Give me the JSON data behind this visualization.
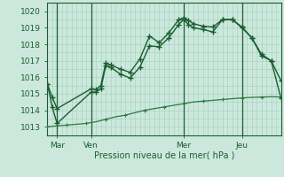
{
  "xlabel": "Pression niveau de la mer( hPa )",
  "ylim": [
    1012.5,
    1020.5
  ],
  "xlim": [
    0,
    48
  ],
  "yticks": [
    1013,
    1014,
    1015,
    1016,
    1017,
    1018,
    1019,
    1020
  ],
  "xtick_positions": [
    2,
    9,
    28,
    40
  ],
  "xtick_labels": [
    "Mar",
    "Ven",
    "Mer",
    "Jeu"
  ],
  "vline_positions": [
    2,
    9,
    28,
    40
  ],
  "bg_color": "#cce8dc",
  "grid_color": "#a8d4c4",
  "line_dark": "#1a5e30",
  "line_medium": "#2a7a40",
  "line1_x": [
    0,
    1,
    2,
    9,
    10,
    11,
    12,
    13,
    15,
    17,
    19,
    21,
    23,
    25,
    27,
    28,
    29,
    30,
    32,
    34,
    36,
    38,
    40,
    42,
    44,
    46,
    48
  ],
  "line1_y": [
    1015.6,
    1014.8,
    1014.1,
    1015.3,
    1015.25,
    1015.5,
    1016.85,
    1016.75,
    1016.5,
    1016.3,
    1017.1,
    1018.5,
    1018.1,
    1018.7,
    1019.5,
    1019.6,
    1019.45,
    1019.25,
    1019.1,
    1019.05,
    1019.5,
    1019.5,
    1019.0,
    1018.4,
    1017.3,
    1017.0,
    1015.8
  ],
  "line2_x": [
    0,
    1,
    2,
    9,
    10,
    11,
    12,
    13,
    15,
    17,
    19,
    21,
    23,
    25,
    27,
    28,
    29,
    30,
    32,
    34,
    36,
    38,
    40,
    42,
    44,
    46,
    48
  ],
  "line2_y": [
    1015.6,
    1014.2,
    1013.2,
    1015.1,
    1015.1,
    1015.3,
    1016.7,
    1016.6,
    1016.2,
    1015.95,
    1016.6,
    1017.9,
    1017.85,
    1018.4,
    1019.2,
    1019.5,
    1019.2,
    1019.0,
    1018.9,
    1018.75,
    1019.5,
    1019.5,
    1019.05,
    1018.4,
    1017.4,
    1017.0,
    1014.75
  ],
  "line3_x": [
    0,
    2,
    4,
    6,
    8,
    10,
    12,
    14,
    16,
    18,
    20,
    22,
    24,
    26,
    28,
    30,
    32,
    34,
    36,
    38,
    40,
    42,
    44,
    46,
    48
  ],
  "line3_y": [
    1013.0,
    1013.05,
    1013.1,
    1013.15,
    1013.2,
    1013.3,
    1013.45,
    1013.6,
    1013.7,
    1013.85,
    1014.0,
    1014.1,
    1014.2,
    1014.3,
    1014.4,
    1014.5,
    1014.55,
    1014.6,
    1014.65,
    1014.7,
    1014.75,
    1014.78,
    1014.8,
    1014.82,
    1014.8
  ]
}
